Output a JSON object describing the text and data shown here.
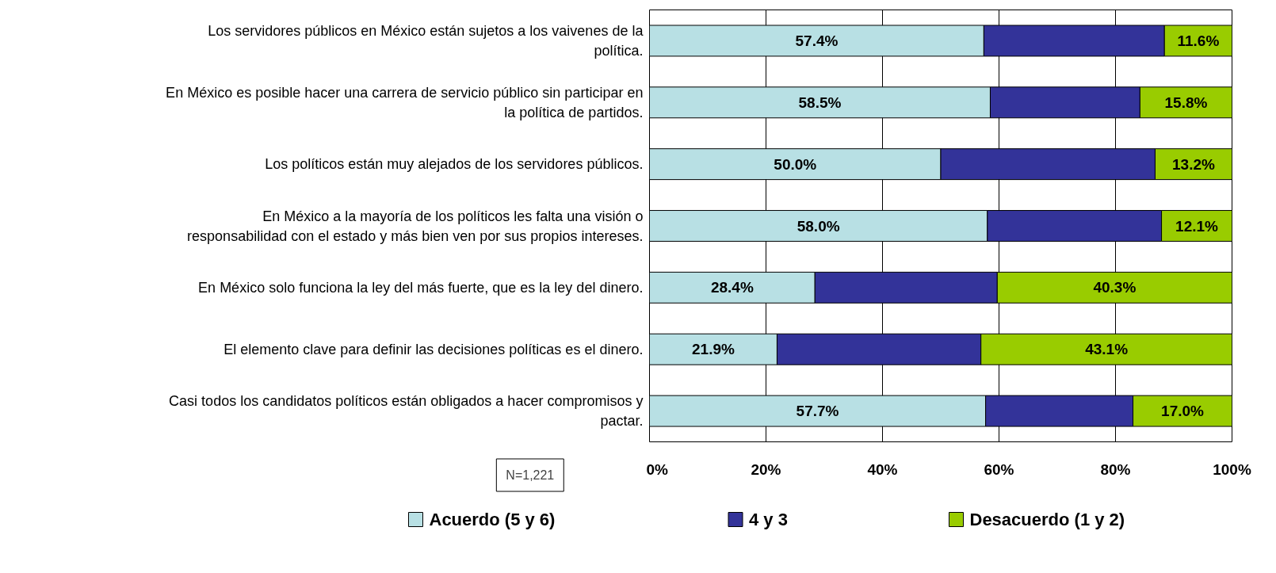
{
  "chart_data": {
    "type": "bar",
    "orientation": "horizontal",
    "stacked": true,
    "categories": [
      "Los servidores públicos en México están sujetos a los vaivenes de la política.",
      "En México es posible hacer una carrera de servicio público sin participar en la política de partidos.",
      "Los políticos están muy alejados de los servidores públicos.",
      "En México a la mayoría de los políticos les falta una visión o responsabilidad con el estado y más bien ven por sus propios intereses.",
      "En México solo funciona la ley del más fuerte, que es la ley del dinero.",
      "El elemento clave para definir las decisiones políticas es el dinero.",
      "Casi todos los candidatos políticos están obligados a hacer compromisos y pactar."
    ],
    "series": [
      {
        "name": "Acuerdo (5 y 6)",
        "color": "#b8e0e4",
        "values": [
          57.4,
          58.5,
          50.0,
          58.0,
          28.4,
          21.9,
          57.7
        ],
        "value_labels": [
          "57.4%",
          "58.5%",
          "50.0%",
          "58.0%",
          "28.4%",
          "21.9%",
          "57.7%"
        ]
      },
      {
        "name": "4 y 3",
        "color": "#333399",
        "values": [
          31.0,
          25.7,
          36.8,
          29.9,
          31.3,
          35.0,
          25.3
        ]
      },
      {
        "name": "Desacuerdo (1 y 2)",
        "color": "#99cc00",
        "values": [
          11.6,
          15.8,
          13.2,
          12.1,
          40.3,
          43.1,
          17.0
        ],
        "value_labels": [
          "11.6%",
          "15.8%",
          "13.2%",
          "12.1%",
          "40.3%",
          "43.1%",
          "17.0%"
        ]
      }
    ],
    "xlim": [
      0,
      100
    ],
    "xticks": [
      {
        "value": 0,
        "label": "0%"
      },
      {
        "value": 20,
        "label": "20%"
      },
      {
        "value": 40,
        "label": "40%"
      },
      {
        "value": 60,
        "label": "60%"
      },
      {
        "value": 80,
        "label": "80%"
      },
      {
        "value": 100,
        "label": "100%"
      }
    ],
    "grid": "x",
    "legend": "bottom",
    "annotations": [
      "N=1,221"
    ]
  }
}
